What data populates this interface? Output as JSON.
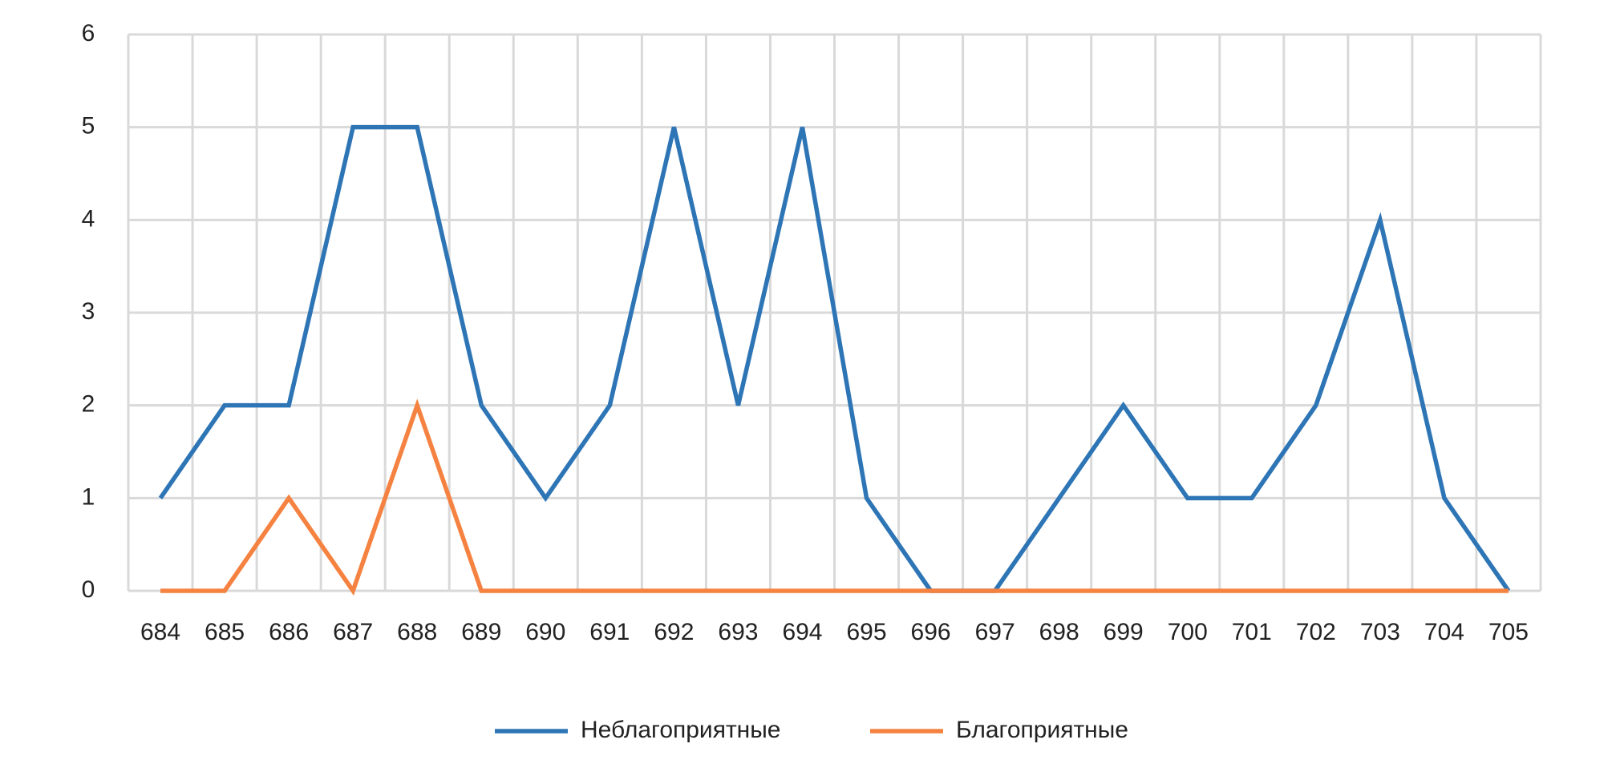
{
  "chart_data": {
    "type": "line",
    "categories": [
      "684",
      "685",
      "686",
      "687",
      "688",
      "689",
      "690",
      "691",
      "692",
      "693",
      "694",
      "695",
      "696",
      "697",
      "698",
      "699",
      "700",
      "701",
      "702",
      "703",
      "704",
      "705"
    ],
    "series": [
      {
        "name": "Неблагоприятные",
        "color": "#2e75b6",
        "values": [
          1,
          2,
          2,
          5,
          5,
          2,
          1,
          2,
          5,
          2,
          5,
          1,
          0,
          0,
          1,
          2,
          1,
          1,
          2,
          4,
          1,
          0
        ]
      },
      {
        "name": "Благоприятные",
        "color": "#f58240",
        "values": [
          0,
          0,
          1,
          0,
          2,
          0,
          0,
          0,
          0,
          0,
          0,
          0,
          0,
          0,
          0,
          0,
          0,
          0,
          0,
          0,
          0,
          0
        ]
      }
    ],
    "ylim": [
      0,
      6
    ],
    "yticks": [
      0,
      1,
      2,
      3,
      4,
      5,
      6
    ],
    "grid": true,
    "legend": "bottom"
  }
}
